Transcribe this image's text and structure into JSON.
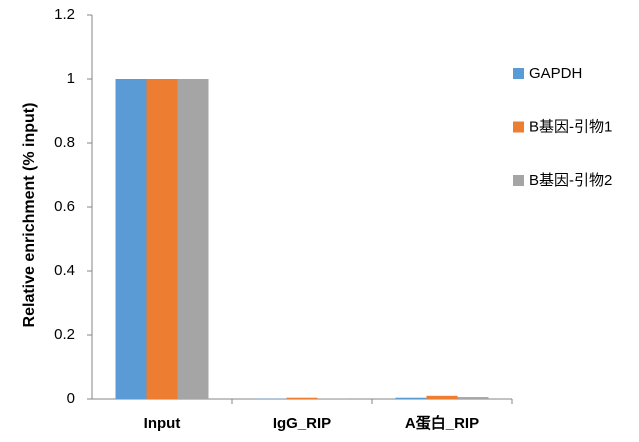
{
  "chart_data": {
    "type": "bar",
    "y_label": "Relative enrichment (% input)",
    "categories": [
      "Input",
      "IgG_RIP",
      "A蛋白_RIP"
    ],
    "series": [
      {
        "name": "GAPDH",
        "color": "#5b9bd5",
        "values": [
          1,
          0.001,
          0.004
        ]
      },
      {
        "name": "B基因-引物1",
        "color": "#ed7d31",
        "values": [
          1,
          0.004,
          0.01
        ]
      },
      {
        "name": "B基因-引物2",
        "color": "#a5a5a5",
        "values": [
          1,
          0.002,
          0.006
        ]
      }
    ],
    "ylim": [
      0,
      1.2
    ],
    "yticks": [
      0,
      0.2,
      0.4,
      0.6,
      0.8,
      1,
      1.2
    ],
    "grid": false,
    "legend": "right"
  }
}
